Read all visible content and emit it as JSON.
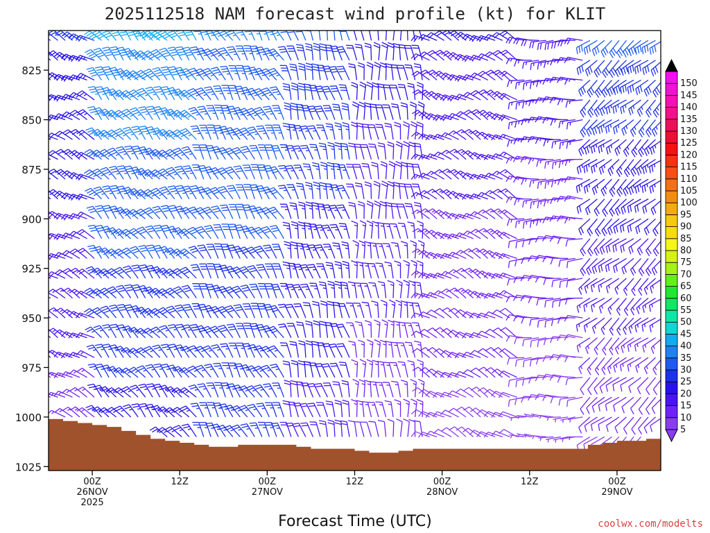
{
  "chart_data": {
    "type": "wind-barb-time-height",
    "title": "2025112518 NAM forecast wind profile (kt) for KLIT",
    "xlabel": "Forecast Time (UTC)",
    "credit": "coolwx.com/modelts",
    "ylabel": "",
    "y_axis": {
      "units": "hPa",
      "inverted": true,
      "range": [
        805,
        1027
      ],
      "ticks": [
        825,
        850,
        875,
        900,
        925,
        950,
        975,
        1000,
        1025
      ],
      "tick_labels": [
        "825",
        "850",
        "875",
        "900",
        "925",
        "950",
        "975",
        "1000",
        "1025"
      ]
    },
    "x_axis": {
      "units": "forecast hour",
      "range": [
        0,
        84
      ],
      "ticks": [
        {
          "hour": 6,
          "line1": "00Z",
          "line2": "26NOV",
          "line3": "2025"
        },
        {
          "hour": 18,
          "line1": "12Z",
          "line2": "",
          "line3": ""
        },
        {
          "hour": 30,
          "line1": "00Z",
          "line2": "27NOV",
          "line3": ""
        },
        {
          "hour": 42,
          "line1": "12Z",
          "line2": "",
          "line3": ""
        },
        {
          "hour": 54,
          "line1": "00Z",
          "line2": "28NOV",
          "line3": ""
        },
        {
          "hour": 66,
          "line1": "12Z",
          "line2": "",
          "line3": ""
        },
        {
          "hour": 78,
          "line1": "00Z",
          "line2": "29NOV",
          "line3": ""
        }
      ]
    },
    "surface_pressure": [
      [
        0,
        1001
      ],
      [
        2,
        1002
      ],
      [
        4,
        1003
      ],
      [
        6,
        1004
      ],
      [
        8,
        1005
      ],
      [
        10,
        1007
      ],
      [
        12,
        1009
      ],
      [
        14,
        1011
      ],
      [
        16,
        1012
      ],
      [
        18,
        1013
      ],
      [
        20,
        1014
      ],
      [
        22,
        1015
      ],
      [
        24,
        1015
      ],
      [
        26,
        1014
      ],
      [
        28,
        1014
      ],
      [
        30,
        1014
      ],
      [
        32,
        1014
      ],
      [
        34,
        1015
      ],
      [
        36,
        1016
      ],
      [
        38,
        1016
      ],
      [
        40,
        1016
      ],
      [
        42,
        1017
      ],
      [
        44,
        1018
      ],
      [
        46,
        1018
      ],
      [
        48,
        1017
      ],
      [
        50,
        1016
      ],
      [
        52,
        1016
      ],
      [
        54,
        1016
      ],
      [
        56,
        1016
      ],
      [
        58,
        1016
      ],
      [
        60,
        1016
      ],
      [
        62,
        1016
      ],
      [
        64,
        1016
      ],
      [
        66,
        1016
      ],
      [
        68,
        1016
      ],
      [
        70,
        1016
      ],
      [
        72,
        1016
      ],
      [
        74,
        1014
      ],
      [
        76,
        1013
      ],
      [
        78,
        1012
      ],
      [
        80,
        1012
      ],
      [
        82,
        1011
      ],
      [
        84,
        1010
      ]
    ],
    "terrain_color": "#a0522d",
    "colorbar": {
      "levels": [
        5,
        10,
        15,
        20,
        25,
        30,
        35,
        40,
        45,
        50,
        55,
        60,
        65,
        70,
        75,
        80,
        85,
        90,
        95,
        100,
        105,
        110,
        115,
        120,
        125,
        130,
        135,
        140,
        145,
        150
      ],
      "colors": [
        "#8a3cf0",
        "#7022f5",
        "#4a14f0",
        "#2812e8",
        "#1c32e8",
        "#1e5af0",
        "#1e82f4",
        "#12aaf0",
        "#12d6d6",
        "#12e6a6",
        "#12e664",
        "#24e62e",
        "#60f01c",
        "#a6f01c",
        "#d6f01c",
        "#f5f51c",
        "#f5dc12",
        "#f5c812",
        "#f5aa12",
        "#f58c12",
        "#f57012",
        "#f55012",
        "#f53212",
        "#f51212",
        "#e81234",
        "#e8125a",
        "#f0128a",
        "#f012b4",
        "#f012d6",
        "#f012f0"
      ]
    },
    "wind_field": {
      "hour_step": 1,
      "levels_hpa": [
        810,
        820,
        830,
        840,
        850,
        860,
        870,
        880,
        890,
        900,
        910,
        920,
        930,
        940,
        950,
        960,
        970,
        980,
        990,
        1000,
        1010,
        1020
      ],
      "segments": [
        {
          "t0": 0,
          "t1": 7,
          "dir": 300,
          "spd_top": 25,
          "spd_bot": 12
        },
        {
          "t0": 7,
          "t1": 21,
          "dir": 320,
          "spd_top": 40,
          "spd_bot": 22
        },
        {
          "t0": 21,
          "t1": 33,
          "dir": 330,
          "spd_top": 35,
          "spd_bot": 25
        },
        {
          "t0": 33,
          "t1": 42,
          "dir": 345,
          "spd_top": 30,
          "spd_bot": 18
        },
        {
          "t0": 42,
          "t1": 52,
          "dir": 355,
          "spd_top": 22,
          "spd_bot": 12
        },
        {
          "t0": 52,
          "t1": 65,
          "dir": 300,
          "spd_top": 20,
          "spd_bot": 8
        },
        {
          "t0": 65,
          "t1": 74,
          "dir": 270,
          "spd_top": 18,
          "spd_bot": 6
        },
        {
          "t0": 74,
          "t1": 84,
          "dir": 230,
          "spd_top": 30,
          "spd_bot": 8
        }
      ]
    }
  }
}
